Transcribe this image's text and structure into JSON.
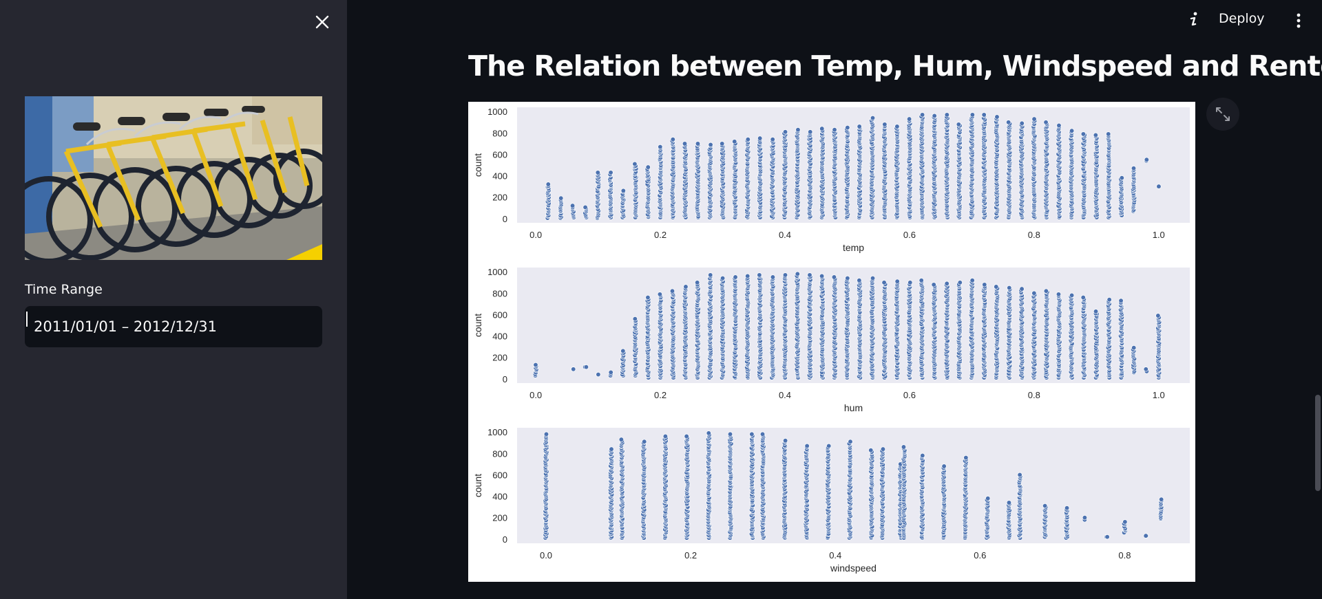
{
  "sidebar": {
    "time_range_label": "Time Range",
    "date_value": "2011/01/01 – 2012/12/31"
  },
  "header": {
    "deploy_label": "Deploy"
  },
  "main": {
    "title": "The Relation between Temp, Hum, Windspeed and Renters"
  },
  "colors": {
    "sidebar_bg": "#262730",
    "main_bg": "#0e1117",
    "plot_bg": "#eaeaf2",
    "point": "#4c72b0"
  },
  "chart_data": [
    {
      "type": "scatter",
      "xlabel": "temp",
      "ylabel": "count",
      "xlim": [
        -0.03,
        1.05
      ],
      "ylim": [
        -40,
        1040
      ],
      "xticks": [
        "0.0",
        "0.2",
        "0.4",
        "0.6",
        "0.8",
        "1.0"
      ],
      "yticks": [
        "0",
        "200",
        "400",
        "600",
        "800",
        "1000"
      ],
      "columns": [
        [
          0.02,
          5,
          320
        ],
        [
          0.04,
          5,
          190
        ],
        [
          0.06,
          10,
          120
        ],
        [
          0.08,
          10,
          105
        ],
        [
          0.1,
          5,
          430
        ],
        [
          0.12,
          10,
          430
        ],
        [
          0.14,
          10,
          260
        ],
        [
          0.16,
          10,
          510
        ],
        [
          0.18,
          15,
          480
        ],
        [
          0.2,
          10,
          670
        ],
        [
          0.22,
          10,
          740
        ],
        [
          0.24,
          10,
          700
        ],
        [
          0.26,
          10,
          700
        ],
        [
          0.28,
          10,
          690
        ],
        [
          0.3,
          10,
          700
        ],
        [
          0.32,
          10,
          720
        ],
        [
          0.34,
          10,
          740
        ],
        [
          0.36,
          10,
          750
        ],
        [
          0.38,
          10,
          740
        ],
        [
          0.4,
          10,
          810
        ],
        [
          0.42,
          10,
          830
        ],
        [
          0.44,
          10,
          810
        ],
        [
          0.46,
          10,
          840
        ],
        [
          0.48,
          10,
          830
        ],
        [
          0.5,
          10,
          850
        ],
        [
          0.52,
          10,
          860
        ],
        [
          0.54,
          10,
          940
        ],
        [
          0.56,
          10,
          880
        ],
        [
          0.58,
          10,
          860
        ],
        [
          0.6,
          10,
          930
        ],
        [
          0.62,
          10,
          970
        ],
        [
          0.64,
          10,
          960
        ],
        [
          0.66,
          10,
          970
        ],
        [
          0.68,
          10,
          880
        ],
        [
          0.7,
          10,
          970
        ],
        [
          0.72,
          10,
          970
        ],
        [
          0.74,
          10,
          950
        ],
        [
          0.76,
          10,
          900
        ],
        [
          0.78,
          10,
          890
        ],
        [
          0.8,
          10,
          930
        ],
        [
          0.82,
          10,
          900
        ],
        [
          0.84,
          10,
          870
        ],
        [
          0.86,
          10,
          820
        ],
        [
          0.88,
          10,
          790
        ],
        [
          0.9,
          10,
          780
        ],
        [
          0.92,
          10,
          790
        ],
        [
          0.94,
          30,
          380
        ],
        [
          0.96,
          70,
          470
        ],
        [
          0.98,
          540,
          550
        ],
        [
          1.0,
          300,
          300
        ]
      ]
    },
    {
      "type": "scatter",
      "xlabel": "hum",
      "ylabel": "count",
      "xlim": [
        -0.03,
        1.05
      ],
      "ylim": [
        -40,
        1040
      ],
      "xticks": [
        "0.0",
        "0.2",
        "0.4",
        "0.6",
        "0.8",
        "1.0"
      ],
      "yticks": [
        "0",
        "200",
        "400",
        "600",
        "800",
        "1000"
      ],
      "columns": [
        [
          0.0,
          30,
          130
        ],
        [
          0.06,
          90,
          90
        ],
        [
          0.08,
          110,
          110
        ],
        [
          0.1,
          40,
          40
        ],
        [
          0.12,
          30,
          60
        ],
        [
          0.14,
          30,
          260
        ],
        [
          0.16,
          30,
          560
        ],
        [
          0.18,
          10,
          760
        ],
        [
          0.2,
          10,
          790
        ],
        [
          0.22,
          10,
          820
        ],
        [
          0.24,
          10,
          860
        ],
        [
          0.26,
          10,
          900
        ],
        [
          0.28,
          10,
          970
        ],
        [
          0.3,
          10,
          940
        ],
        [
          0.32,
          10,
          950
        ],
        [
          0.34,
          10,
          960
        ],
        [
          0.36,
          10,
          970
        ],
        [
          0.38,
          10,
          950
        ],
        [
          0.4,
          10,
          970
        ],
        [
          0.42,
          10,
          980
        ],
        [
          0.44,
          10,
          970
        ],
        [
          0.46,
          10,
          960
        ],
        [
          0.48,
          10,
          950
        ],
        [
          0.5,
          10,
          940
        ],
        [
          0.52,
          10,
          920
        ],
        [
          0.54,
          10,
          940
        ],
        [
          0.56,
          10,
          900
        ],
        [
          0.58,
          10,
          910
        ],
        [
          0.6,
          10,
          900
        ],
        [
          0.62,
          10,
          920
        ],
        [
          0.64,
          10,
          880
        ],
        [
          0.66,
          10,
          890
        ],
        [
          0.68,
          10,
          900
        ],
        [
          0.7,
          10,
          920
        ],
        [
          0.72,
          10,
          880
        ],
        [
          0.74,
          10,
          860
        ],
        [
          0.76,
          10,
          850
        ],
        [
          0.78,
          10,
          840
        ],
        [
          0.8,
          10,
          800
        ],
        [
          0.82,
          10,
          820
        ],
        [
          0.84,
          10,
          790
        ],
        [
          0.86,
          10,
          780
        ],
        [
          0.88,
          10,
          760
        ],
        [
          0.9,
          10,
          630
        ],
        [
          0.92,
          10,
          740
        ],
        [
          0.94,
          10,
          730
        ],
        [
          0.96,
          60,
          290
        ],
        [
          0.98,
          70,
          90
        ],
        [
          1.0,
          10,
          590
        ]
      ]
    },
    {
      "type": "scatter",
      "xlabel": "windspeed",
      "ylabel": "count",
      "xlim": [
        -0.04,
        0.89
      ],
      "ylim": [
        -40,
        1040
      ],
      "xticks": [
        "0.0",
        "0.2",
        "0.4",
        "0.6",
        "0.8"
      ],
      "yticks": [
        "0",
        "200",
        "400",
        "600",
        "800",
        "1000"
      ],
      "columns": [
        [
          0.0,
          10,
          980
        ],
        [
          0.09,
          10,
          840
        ],
        [
          0.105,
          10,
          930
        ],
        [
          0.135,
          10,
          910
        ],
        [
          0.165,
          10,
          960
        ],
        [
          0.195,
          10,
          960
        ],
        [
          0.225,
          10,
          990
        ],
        [
          0.255,
          10,
          980
        ],
        [
          0.285,
          10,
          980
        ],
        [
          0.3,
          10,
          980
        ],
        [
          0.33,
          10,
          920
        ],
        [
          0.36,
          10,
          870
        ],
        [
          0.39,
          10,
          870
        ],
        [
          0.42,
          10,
          910
        ],
        [
          0.45,
          10,
          830
        ],
        [
          0.465,
          10,
          840
        ],
        [
          0.49,
          10,
          700
        ],
        [
          0.495,
          10,
          860
        ],
        [
          0.52,
          10,
          780
        ],
        [
          0.55,
          10,
          680
        ],
        [
          0.58,
          10,
          760
        ],
        [
          0.61,
          10,
          380
        ],
        [
          0.64,
          10,
          340
        ],
        [
          0.655,
          10,
          600
        ],
        [
          0.69,
          20,
          310
        ],
        [
          0.72,
          10,
          290
        ],
        [
          0.745,
          180,
          200
        ],
        [
          0.775,
          20,
          20
        ],
        [
          0.8,
          60,
          160
        ],
        [
          0.83,
          30,
          30
        ],
        [
          0.85,
          190,
          370
        ]
      ]
    }
  ]
}
